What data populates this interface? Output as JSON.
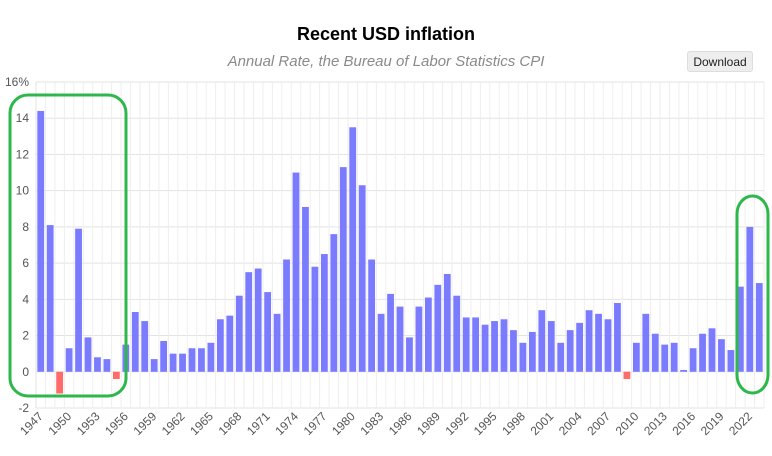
{
  "download_label": "Download",
  "chart_data": {
    "type": "bar",
    "title": "Recent USD inflation",
    "subtitle": "Annual Rate, the Bureau of Labor Statistics CPI",
    "xlabel": "",
    "ylabel": "",
    "ylim": [
      -2,
      16
    ],
    "y_ticks": [
      "16%",
      "14",
      "12",
      "10",
      "8",
      "6",
      "4",
      "2",
      "0",
      "-2"
    ],
    "x": [
      1947,
      1948,
      1949,
      1950,
      1951,
      1952,
      1953,
      1954,
      1955,
      1956,
      1957,
      1958,
      1959,
      1960,
      1961,
      1962,
      1963,
      1964,
      1965,
      1966,
      1967,
      1968,
      1969,
      1970,
      1971,
      1972,
      1973,
      1974,
      1975,
      1976,
      1977,
      1978,
      1979,
      1980,
      1981,
      1982,
      1983,
      1984,
      1985,
      1986,
      1987,
      1988,
      1989,
      1990,
      1991,
      1992,
      1993,
      1994,
      1995,
      1996,
      1997,
      1998,
      1999,
      2000,
      2001,
      2002,
      2003,
      2004,
      2005,
      2006,
      2007,
      2008,
      2009,
      2010,
      2011,
      2012,
      2013,
      2014,
      2015,
      2016,
      2017,
      2018,
      2019,
      2020,
      2021,
      2022,
      2023
    ],
    "x_tick_labels": [
      "1947",
      "1950",
      "1953",
      "1956",
      "1959",
      "1962",
      "1965",
      "1968",
      "1971",
      "1974",
      "1977",
      "1980",
      "1983",
      "1986",
      "1989",
      "1992",
      "1995",
      "1998",
      "2001",
      "2004",
      "2007",
      "2010",
      "2013",
      "2016",
      "2019",
      "2022"
    ],
    "values": [
      14.4,
      8.1,
      -1.2,
      1.3,
      7.9,
      1.9,
      0.8,
      0.7,
      -0.4,
      1.5,
      3.3,
      2.8,
      0.7,
      1.7,
      1.0,
      1.0,
      1.3,
      1.3,
      1.6,
      2.9,
      3.1,
      4.2,
      5.5,
      5.7,
      4.4,
      3.2,
      6.2,
      11.0,
      9.1,
      5.8,
      6.5,
      7.6,
      11.3,
      13.5,
      10.3,
      6.2,
      3.2,
      4.3,
      3.6,
      1.9,
      3.6,
      4.1,
      4.8,
      5.4,
      4.2,
      3.0,
      3.0,
      2.6,
      2.8,
      2.9,
      2.3,
      1.6,
      2.2,
      3.4,
      2.8,
      1.6,
      2.3,
      2.7,
      3.4,
      3.2,
      2.9,
      3.8,
      -0.4,
      1.6,
      3.2,
      2.1,
      1.5,
      1.6,
      0.1,
      1.3,
      2.1,
      2.4,
      1.8,
      1.2,
      4.7,
      8.0,
      4.9
    ],
    "positive_color": "#7b7bff",
    "negative_color": "#ff6b6b",
    "grid": true,
    "legend": "none"
  },
  "annotations": [
    {
      "type": "rounded-rectangle",
      "color": "#2eb84b",
      "x_start": 1947,
      "x_end": 1954
    },
    {
      "type": "rounded-rectangle",
      "color": "#2eb84b",
      "x_start": 2021,
      "x_end": 2023
    }
  ]
}
